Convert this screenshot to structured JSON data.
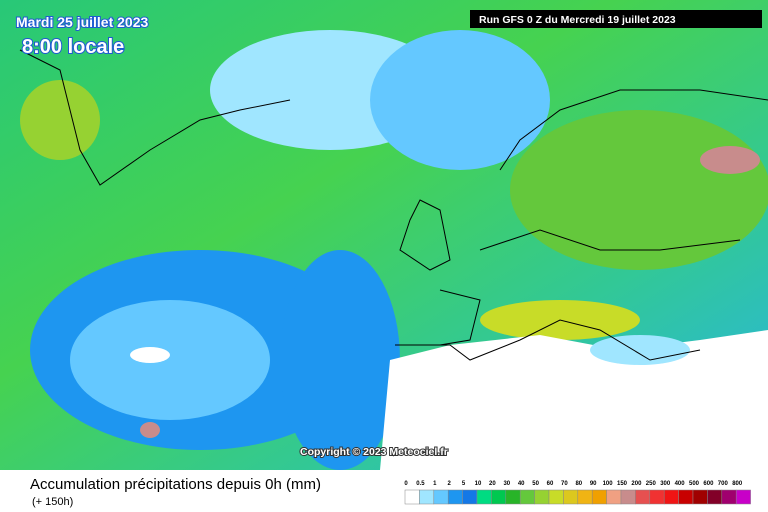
{
  "header": {
    "date": "Mardi 25 juillet 2023",
    "time": "8:00 locale",
    "run": "Run GFS 0 Z du Mercredi 19 juillet 2023"
  },
  "copyright": "Copyright © 2023 Meteociel.fr",
  "footer": {
    "title": "Accumulation précipitations depuis 0h (mm)",
    "subtitle": "(+ 150h)"
  },
  "legend": {
    "items": [
      {
        "label": 0,
        "color": "#ffffff"
      },
      {
        "label": 0.5,
        "color": "#a0e6ff"
      },
      {
        "label": 1,
        "color": "#64c8ff"
      },
      {
        "label": 2,
        "color": "#1e96f0"
      },
      {
        "label": 5,
        "color": "#1478e6"
      },
      {
        "label": 10,
        "color": "#00dc82"
      },
      {
        "label": 20,
        "color": "#00c850"
      },
      {
        "label": 30,
        "color": "#28b428"
      },
      {
        "label": 40,
        "color": "#64c83c"
      },
      {
        "label": 50,
        "color": "#96d232"
      },
      {
        "label": 60,
        "color": "#c8dc28"
      },
      {
        "label": 70,
        "color": "#dcc81e"
      },
      {
        "label": 80,
        "color": "#f0b414"
      },
      {
        "label": 90,
        "color": "#f0a000"
      },
      {
        "label": 100,
        "color": "#f0a082"
      },
      {
        "label": 150,
        "color": "#c88c8c"
      },
      {
        "label": 200,
        "color": "#e65050"
      },
      {
        "label": 250,
        "color": "#f03232"
      },
      {
        "label": 300,
        "color": "#f01414"
      },
      {
        "label": 400,
        "color": "#c80000"
      },
      {
        "label": 500,
        "color": "#a00000"
      },
      {
        "label": 600,
        "color": "#820028"
      },
      {
        "label": 700,
        "color": "#a0006e"
      },
      {
        "label": 800,
        "color": "#c800c8"
      }
    ]
  }
}
